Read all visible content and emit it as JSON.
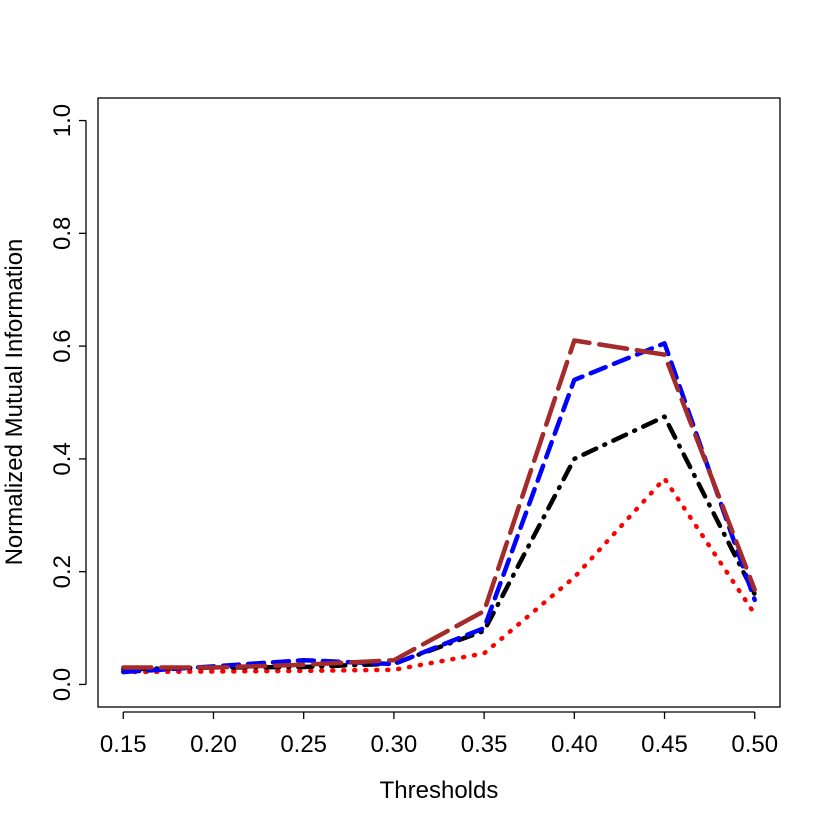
{
  "chart_data": {
    "type": "line",
    "title": "",
    "xlabel": "Thresholds",
    "ylabel": "Normalized Mutual Information",
    "x": [
      0.15,
      0.2,
      0.25,
      0.3,
      0.35,
      0.4,
      0.45,
      0.5
    ],
    "x_tick_labels": [
      "0.15",
      "0.20",
      "0.25",
      "0.30",
      "0.35",
      "0.40",
      "0.45",
      "0.50"
    ],
    "y_ticks": [
      0.0,
      0.2,
      0.4,
      0.6,
      0.8,
      1.0
    ],
    "y_tick_labels": [
      "0.0",
      "0.2",
      "0.4",
      "0.6",
      "0.8",
      "1.0"
    ],
    "xlim": [
      0.136,
      0.514
    ],
    "ylim": [
      -0.04,
      1.04
    ],
    "grid": false,
    "legend": "none",
    "series": [
      {
        "color": "#ff0000",
        "style": "dotted",
        "values": [
          0.022,
          0.023,
          0.024,
          0.026,
          0.055,
          0.19,
          0.365,
          0.125
        ]
      },
      {
        "color": "#000000",
        "style": "dashdot",
        "values": [
          0.027,
          0.03,
          0.031,
          0.037,
          0.095,
          0.4,
          0.475,
          0.16
        ]
      },
      {
        "color": "#0000ff",
        "style": "dashed",
        "values": [
          0.022,
          0.032,
          0.043,
          0.036,
          0.1,
          0.54,
          0.605,
          0.15
        ]
      },
      {
        "color": "#a52a2a",
        "style": "longdash",
        "values": [
          0.03,
          0.03,
          0.035,
          0.043,
          0.13,
          0.61,
          0.585,
          0.168
        ]
      }
    ]
  }
}
